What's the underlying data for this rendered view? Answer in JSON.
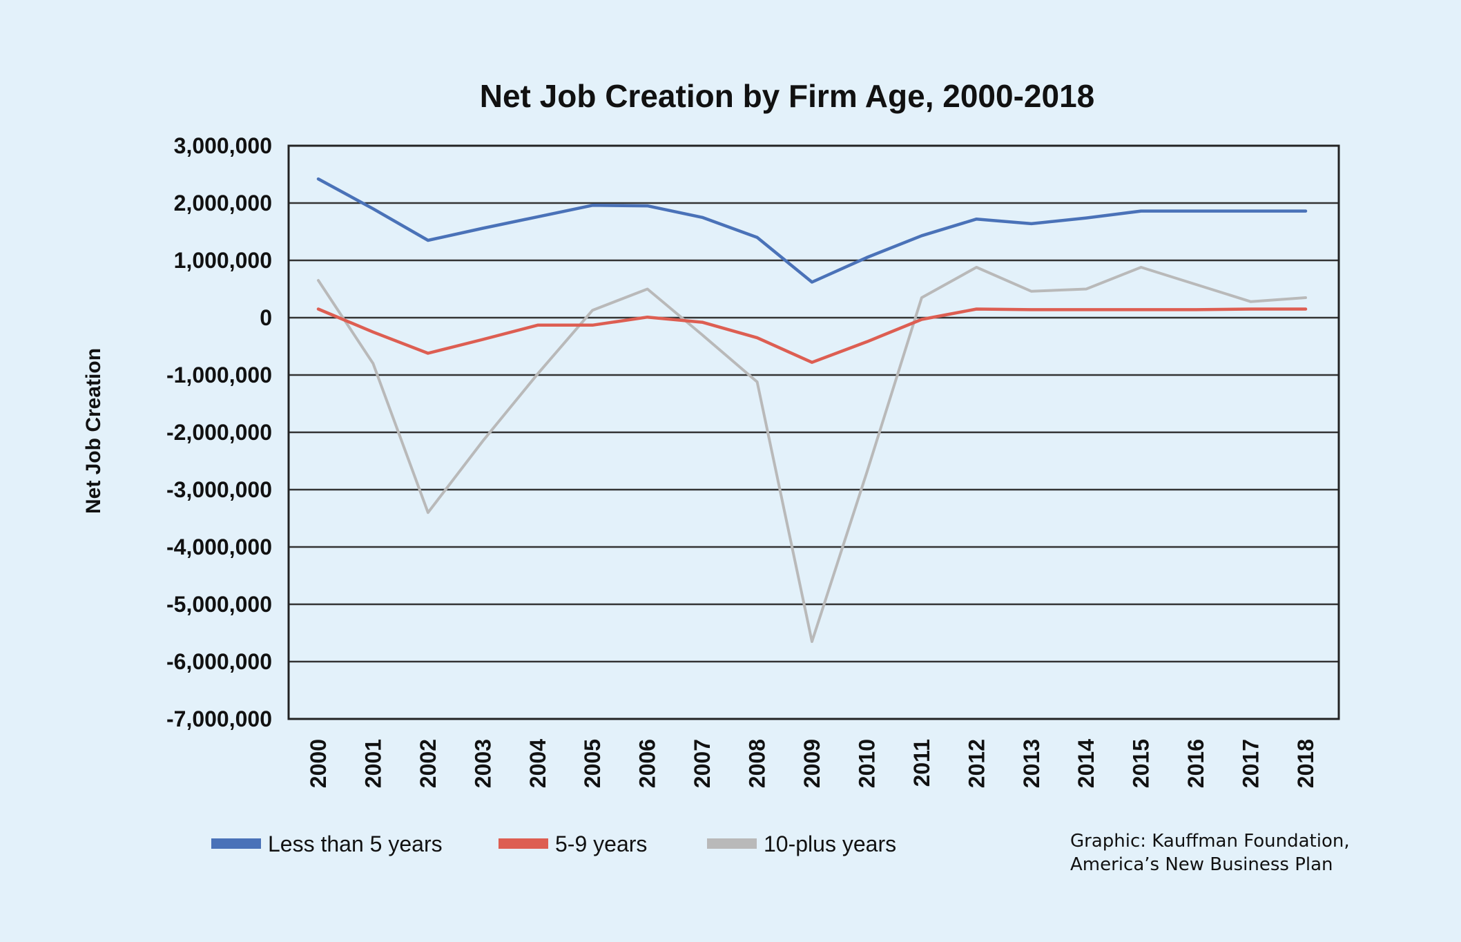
{
  "chart_data": {
    "type": "line",
    "title": "Net Job Creation by Firm Age, 2000-2018",
    "xlabel": "",
    "ylabel": "Net Job Creation",
    "ylim": [
      -7000000,
      3000000
    ],
    "grid": true,
    "yticks": [
      3000000,
      2000000,
      1000000,
      0,
      -1000000,
      -2000000,
      -3000000,
      -4000000,
      -5000000,
      -6000000,
      -7000000
    ],
    "ytick_labels": [
      "3,000,000",
      "2,000,000",
      "1,000,000",
      "0",
      "-1,000,000",
      "-2,000,000",
      "-3,000,000",
      "-4,000,000",
      "-5,000,000",
      "-6,000,000",
      "-7,000,000"
    ],
    "categories": [
      "2000",
      "2001",
      "2002",
      "2003",
      "2004",
      "2005",
      "2006",
      "2007",
      "2008",
      "2009",
      "2010",
      "2011",
      "2012",
      "2013",
      "2014",
      "2015",
      "2016",
      "2017",
      "2018"
    ],
    "series": [
      {
        "name": "Less than 5 years",
        "color": "#4a72b8",
        "values": [
          2420000,
          1900000,
          1350000,
          1560000,
          1760000,
          1960000,
          1950000,
          1750000,
          1400000,
          620000,
          1050000,
          1430000,
          1720000,
          1640000,
          1740000,
          1860000,
          1860000,
          1860000,
          1860000
        ]
      },
      {
        "name": "5-9 years",
        "color": "#dd5e52",
        "values": [
          150000,
          -250000,
          -620000,
          -380000,
          -130000,
          -130000,
          10000,
          -80000,
          -350000,
          -780000,
          -420000,
          -30000,
          150000,
          140000,
          140000,
          140000,
          140000,
          150000,
          150000
        ]
      },
      {
        "name": "10-plus years",
        "color": "#b9b9b9",
        "values": [
          650000,
          -800000,
          -3400000,
          -2150000,
          -980000,
          130000,
          500000,
          -300000,
          -1120000,
          -5650000,
          -2700000,
          350000,
          880000,
          460000,
          500000,
          880000,
          580000,
          280000,
          350000
        ]
      }
    ]
  },
  "source": {
    "line1": "Graphic: Kauffman Foundation,",
    "line2": "America’s New Business Plan"
  }
}
